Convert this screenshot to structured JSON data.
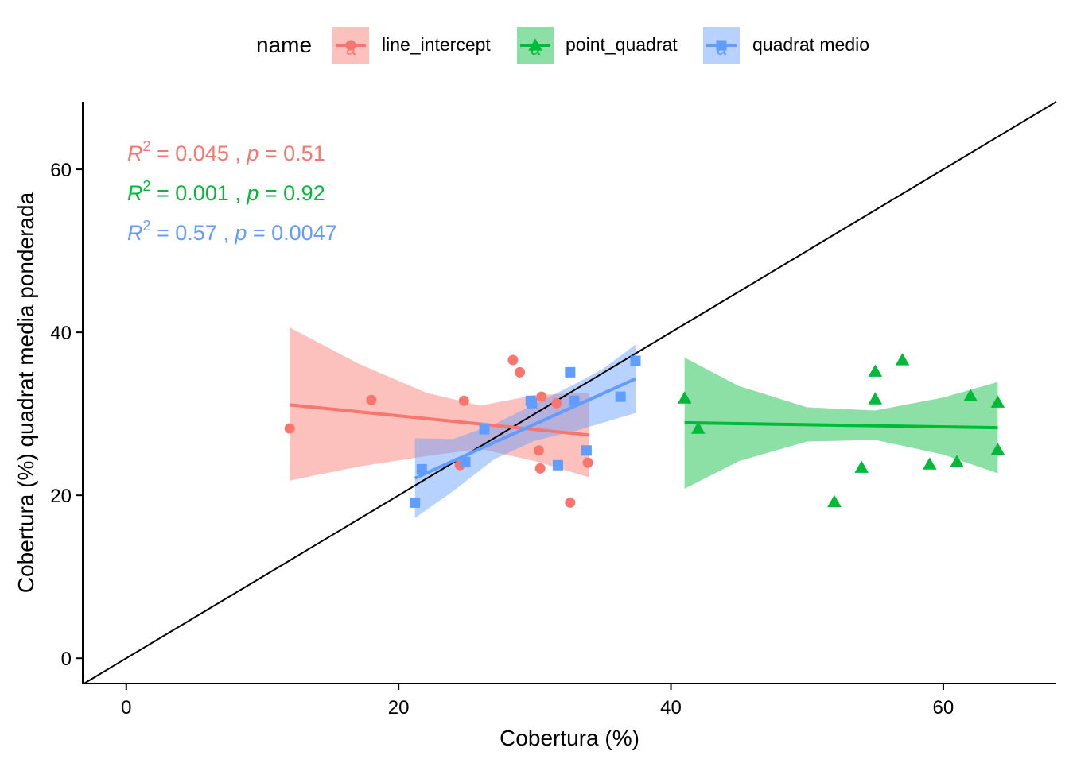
{
  "chart_data": {
    "type": "scatter",
    "title": "",
    "xlabel": "Cobertura (%)",
    "ylabel": "Cobertura (%) quadrat media ponderada",
    "xlim": [
      -3.2,
      68.3
    ],
    "ylim": [
      -3.1,
      68.3
    ],
    "xticks": [
      0,
      20,
      40,
      60
    ],
    "yticks": [
      0,
      20,
      40,
      60
    ],
    "xtick_labels": [
      "0",
      "20",
      "40",
      "60"
    ],
    "ytick_labels": [
      "0",
      "20",
      "40",
      "60"
    ],
    "grid": false,
    "legend": {
      "position": "top",
      "title": "name",
      "key_letter": "a",
      "entries": [
        "line_intercept",
        "point_quadrat",
        "quadrat medio"
      ]
    },
    "reference_line": {
      "type": "identity",
      "color": "#000000"
    },
    "series": [
      {
        "name": "line_intercept",
        "color": "#F8766D",
        "marker": "circle",
        "points": [
          [
            12,
            28.2
          ],
          [
            18,
            31.7
          ],
          [
            24.5,
            23.7
          ],
          [
            24.8,
            31.6
          ],
          [
            28.4,
            36.6
          ],
          [
            28.9,
            35.1
          ],
          [
            30.3,
            25.5
          ],
          [
            30.4,
            23.3
          ],
          [
            30.5,
            32.1
          ],
          [
            31.6,
            31.3
          ],
          [
            32.6,
            19.1
          ],
          [
            33.9,
            24.0
          ]
        ],
        "fit": {
          "x": [
            12,
            34
          ],
          "y": [
            31.1,
            27.4
          ]
        },
        "band": {
          "x": [
            12,
            17,
            22,
            26,
            30,
            34
          ],
          "upper": [
            40.6,
            36.2,
            32.6,
            31.0,
            32.3,
            32.6
          ],
          "lower": [
            21.8,
            23.5,
            24.8,
            25.7,
            24.2,
            22.2
          ]
        },
        "annotation": {
          "r2": "0.045",
          "p": "0.51"
        }
      },
      {
        "name": "point_quadrat",
        "color": "#00BA38",
        "marker": "triangle",
        "points": [
          [
            41,
            31.9
          ],
          [
            42,
            28.2
          ],
          [
            52,
            19.2
          ],
          [
            54,
            23.4
          ],
          [
            55,
            35.2
          ],
          [
            55,
            31.8
          ],
          [
            57,
            36.6
          ],
          [
            59,
            23.8
          ],
          [
            61,
            24.1
          ],
          [
            62,
            32.2
          ],
          [
            64,
            31.4
          ],
          [
            64,
            25.6
          ]
        ],
        "fit": {
          "x": [
            41,
            64
          ],
          "y": [
            28.9,
            28.3
          ]
        },
        "band": {
          "x": [
            41,
            45,
            50,
            55,
            60,
            64
          ],
          "upper": [
            36.9,
            33.4,
            30.8,
            30.4,
            32.0,
            33.9
          ],
          "lower": [
            20.8,
            24.2,
            26.6,
            26.8,
            25.0,
            22.7
          ]
        },
        "annotation": {
          "r2": "0.001",
          "p": "0.92"
        }
      },
      {
        "name": "quadrat medio",
        "color": "#619CFF",
        "marker": "square",
        "points": [
          [
            21.2,
            19.1
          ],
          [
            21.7,
            23.2
          ],
          [
            24.9,
            24.1
          ],
          [
            26.3,
            28.1
          ],
          [
            29.7,
            31.6
          ],
          [
            29.8,
            31.3
          ],
          [
            32.6,
            35.1
          ],
          [
            31.7,
            23.7
          ],
          [
            32.9,
            31.6
          ],
          [
            33.8,
            25.5
          ],
          [
            36.3,
            32.1
          ],
          [
            37.4,
            36.5
          ]
        ],
        "fit": {
          "x": [
            21.2,
            37.4
          ],
          "y": [
            22.1,
            34.3
          ]
        },
        "band": {
          "x": [
            21.2,
            24,
            27,
            30,
            33,
            35,
            37.4
          ],
          "upper": [
            27.0,
            26.9,
            28.7,
            31.2,
            33.7,
            35.5,
            38.5
          ],
          "lower": [
            17.2,
            20.5,
            24.4,
            26.7,
            27.9,
            28.9,
            30.1
          ]
        },
        "annotation": {
          "r2": "0.57",
          "p": "0.0047"
        }
      }
    ]
  }
}
